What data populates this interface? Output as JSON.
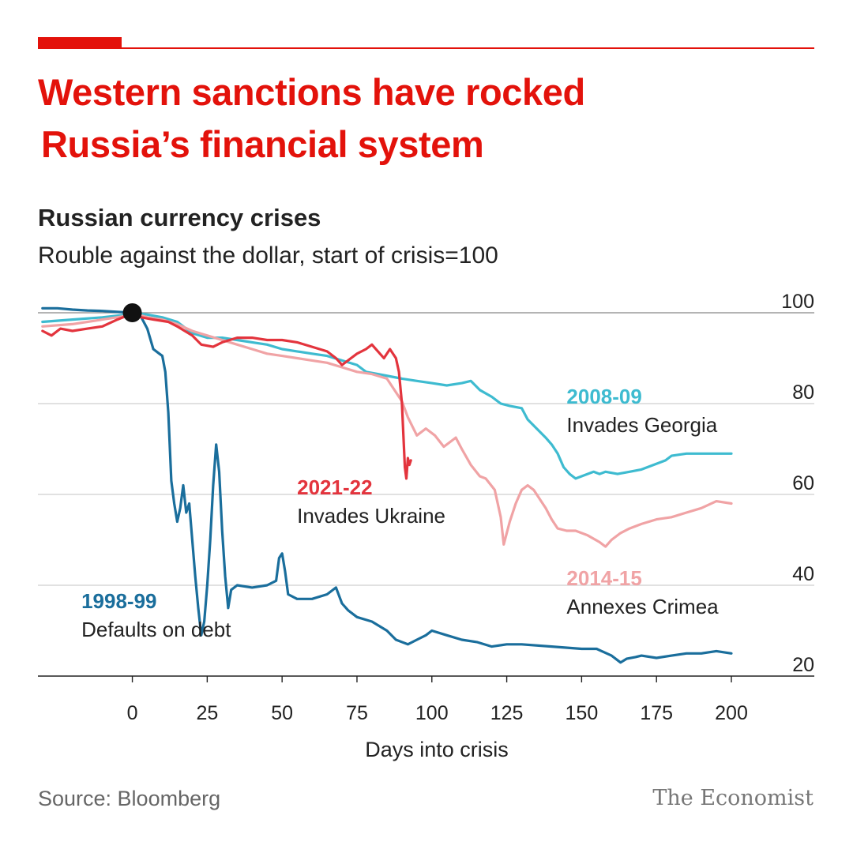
{
  "header": {
    "headline_line1": "Western sanctions have rocked",
    "headline_line2": "Russia’s financial system",
    "accent_color": "#e3120b"
  },
  "footer": {
    "source": "Source: Bloomberg",
    "brand": "The Economist"
  },
  "chart_data": {
    "type": "line",
    "title": "Russian currency crises",
    "subtitle": "Rouble against the dollar, start of crisis=100",
    "xlabel": "Days into crisis",
    "ylabel": "",
    "xlim": [
      -31,
      200
    ],
    "ylim": [
      20,
      100
    ],
    "x_ticks": [
      0,
      25,
      50,
      75,
      100,
      125,
      150,
      175,
      200
    ],
    "y_ticks": [
      20,
      40,
      60,
      80,
      100
    ],
    "grid": "horizontal",
    "start_marker": {
      "x": 0,
      "y": 100
    },
    "series": [
      {
        "name": "2008-09",
        "label": "Invades Georgia",
        "color": "#3ebbd0",
        "points": [
          [
            -30,
            98
          ],
          [
            -20,
            98.5
          ],
          [
            -10,
            99
          ],
          [
            -3,
            99.5
          ],
          [
            0,
            100
          ],
          [
            5,
            99.6
          ],
          [
            10,
            99
          ],
          [
            15,
            98
          ],
          [
            18,
            96.5
          ],
          [
            20,
            95.5
          ],
          [
            25,
            94.5
          ],
          [
            30,
            94.5
          ],
          [
            35,
            94
          ],
          [
            40,
            93.5
          ],
          [
            45,
            93
          ],
          [
            50,
            92
          ],
          [
            55,
            91.5
          ],
          [
            60,
            91
          ],
          [
            65,
            90.5
          ],
          [
            70,
            89.5
          ],
          [
            75,
            88.5
          ],
          [
            78,
            87
          ],
          [
            82,
            86.5
          ],
          [
            86,
            86
          ],
          [
            90,
            85.5
          ],
          [
            95,
            85
          ],
          [
            100,
            84.5
          ],
          [
            105,
            84
          ],
          [
            110,
            84.5
          ],
          [
            113,
            85
          ],
          [
            116,
            83
          ],
          [
            120,
            81.5
          ],
          [
            123,
            80
          ],
          [
            126,
            79.5
          ],
          [
            130,
            79
          ],
          [
            132,
            76.5
          ],
          [
            135,
            74.5
          ],
          [
            138,
            72.5
          ],
          [
            140,
            71
          ],
          [
            142,
            69
          ],
          [
            144,
            66
          ],
          [
            146,
            64.5
          ],
          [
            148,
            63.5
          ],
          [
            150,
            64
          ],
          [
            152,
            64.5
          ],
          [
            154,
            65
          ],
          [
            156,
            64.5
          ],
          [
            158,
            65
          ],
          [
            162,
            64.5
          ],
          [
            166,
            65
          ],
          [
            170,
            65.5
          ],
          [
            174,
            66.5
          ],
          [
            178,
            67.5
          ],
          [
            180,
            68.5
          ],
          [
            185,
            69
          ],
          [
            190,
            69
          ],
          [
            195,
            69
          ],
          [
            200,
            69
          ]
        ],
        "annotation": {
          "x": 145,
          "y": 80
        }
      },
      {
        "name": "2014-15",
        "label": "Annexes Crimea",
        "color": "#f0a3a5",
        "points": [
          [
            -30,
            97
          ],
          [
            -20,
            97.5
          ],
          [
            -10,
            98.5
          ],
          [
            -3,
            99.2
          ],
          [
            0,
            100
          ],
          [
            5,
            99
          ],
          [
            10,
            98.5
          ],
          [
            15,
            97.5
          ],
          [
            20,
            96
          ],
          [
            25,
            95
          ],
          [
            30,
            94
          ],
          [
            35,
            93
          ],
          [
            40,
            92
          ],
          [
            45,
            91
          ],
          [
            50,
            90.5
          ],
          [
            55,
            90
          ],
          [
            60,
            89.5
          ],
          [
            65,
            89
          ],
          [
            70,
            88
          ],
          [
            75,
            87
          ],
          [
            80,
            86.5
          ],
          [
            85,
            85.5
          ],
          [
            90,
            80.5
          ],
          [
            92,
            77
          ],
          [
            95,
            73
          ],
          [
            98,
            74.5
          ],
          [
            101,
            73
          ],
          [
            104,
            70.5
          ],
          [
            108,
            72.5
          ],
          [
            110,
            70
          ],
          [
            113,
            66.5
          ],
          [
            116,
            64
          ],
          [
            118,
            63.5
          ],
          [
            121,
            61
          ],
          [
            123,
            55
          ],
          [
            124,
            49
          ],
          [
            126,
            54
          ],
          [
            128,
            58
          ],
          [
            130,
            61
          ],
          [
            132,
            62
          ],
          [
            134,
            61
          ],
          [
            136,
            59
          ],
          [
            138,
            57
          ],
          [
            140,
            54.5
          ],
          [
            142,
            52.5
          ],
          [
            145,
            52
          ],
          [
            148,
            52
          ],
          [
            152,
            51
          ],
          [
            156,
            49.5
          ],
          [
            158,
            48.5
          ],
          [
            160,
            50
          ],
          [
            163,
            51.5
          ],
          [
            166,
            52.5
          ],
          [
            170,
            53.5
          ],
          [
            175,
            54.5
          ],
          [
            180,
            55
          ],
          [
            185,
            56
          ],
          [
            190,
            57
          ],
          [
            195,
            58.5
          ],
          [
            200,
            58
          ]
        ],
        "annotation": {
          "x": 145,
          "y": 40
        }
      },
      {
        "name": "2021-22",
        "label": "Invades Ukraine",
        "color": "#e3343d",
        "points": [
          [
            -30,
            96
          ],
          [
            -27,
            95
          ],
          [
            -24,
            96.5
          ],
          [
            -20,
            96
          ],
          [
            -15,
            96.5
          ],
          [
            -10,
            97
          ],
          [
            -5,
            98.5
          ],
          [
            -2,
            99.3
          ],
          [
            0,
            100
          ],
          [
            3,
            99
          ],
          [
            7,
            98.5
          ],
          [
            12,
            98
          ],
          [
            15,
            97
          ],
          [
            20,
            95
          ],
          [
            23,
            93
          ],
          [
            27,
            92.5
          ],
          [
            30,
            93.5
          ],
          [
            35,
            94.5
          ],
          [
            40,
            94.5
          ],
          [
            45,
            94
          ],
          [
            50,
            94
          ],
          [
            55,
            93.5
          ],
          [
            60,
            92.5
          ],
          [
            65,
            91.5
          ],
          [
            68,
            90
          ],
          [
            70,
            88.5
          ],
          [
            73,
            90
          ],
          [
            75,
            91
          ],
          [
            78,
            92
          ],
          [
            80,
            93
          ],
          [
            82,
            91.5
          ],
          [
            84,
            90
          ],
          [
            86,
            92
          ],
          [
            88,
            90
          ],
          [
            89,
            87
          ],
          [
            90,
            80
          ],
          [
            91,
            66
          ],
          [
            91.5,
            63.5
          ],
          [
            92,
            68
          ],
          [
            92.5,
            66.5
          ],
          [
            93,
            67.5
          ]
        ],
        "annotation": {
          "x": 55,
          "y": 60
        }
      },
      {
        "name": "1998-99",
        "label": "Defaults on debt",
        "color": "#1a6e9c",
        "points": [
          [
            -30,
            101
          ],
          [
            -25,
            101
          ],
          [
            -20,
            100.7
          ],
          [
            -15,
            100.5
          ],
          [
            -10,
            100.4
          ],
          [
            -5,
            100.2
          ],
          [
            0,
            100
          ],
          [
            3,
            99
          ],
          [
            5,
            96.5
          ],
          [
            7,
            92
          ],
          [
            9,
            91
          ],
          [
            10,
            90.5
          ],
          [
            11,
            87
          ],
          [
            12,
            78
          ],
          [
            13,
            63
          ],
          [
            14,
            58
          ],
          [
            15,
            54
          ],
          [
            16,
            57
          ],
          [
            17,
            62
          ],
          [
            18,
            56
          ],
          [
            19,
            58
          ],
          [
            20,
            50
          ],
          [
            21,
            42
          ],
          [
            22,
            35
          ],
          [
            23,
            29
          ],
          [
            24,
            32
          ],
          [
            25,
            40
          ],
          [
            26,
            50
          ],
          [
            27,
            62
          ],
          [
            28,
            71
          ],
          [
            29,
            65
          ],
          [
            30,
            52
          ],
          [
            31,
            42
          ],
          [
            32,
            35
          ],
          [
            33,
            39
          ],
          [
            35,
            40
          ],
          [
            40,
            39.5
          ],
          [
            45,
            40
          ],
          [
            48,
            41
          ],
          [
            49,
            46
          ],
          [
            50,
            47
          ],
          [
            51,
            43
          ],
          [
            52,
            38
          ],
          [
            55,
            37
          ],
          [
            60,
            37
          ],
          [
            65,
            38
          ],
          [
            68,
            39.5
          ],
          [
            70,
            36
          ],
          [
            72,
            34.5
          ],
          [
            75,
            33
          ],
          [
            80,
            32
          ],
          [
            85,
            30
          ],
          [
            88,
            28
          ],
          [
            92,
            27
          ],
          [
            95,
            28
          ],
          [
            98,
            29
          ],
          [
            100,
            30
          ],
          [
            105,
            29
          ],
          [
            110,
            28
          ],
          [
            115,
            27.5
          ],
          [
            120,
            26.5
          ],
          [
            125,
            27
          ],
          [
            130,
            27
          ],
          [
            140,
            26.5
          ],
          [
            150,
            26
          ],
          [
            155,
            26
          ],
          [
            160,
            24.5
          ],
          [
            163,
            23
          ],
          [
            165,
            23.8
          ],
          [
            168,
            24.2
          ],
          [
            170,
            24.5
          ],
          [
            175,
            24
          ],
          [
            180,
            24.5
          ],
          [
            185,
            25
          ],
          [
            190,
            25
          ],
          [
            195,
            25.5
          ],
          [
            200,
            25
          ]
        ],
        "annotation": {
          "x": -17,
          "y": 35
        }
      }
    ]
  }
}
